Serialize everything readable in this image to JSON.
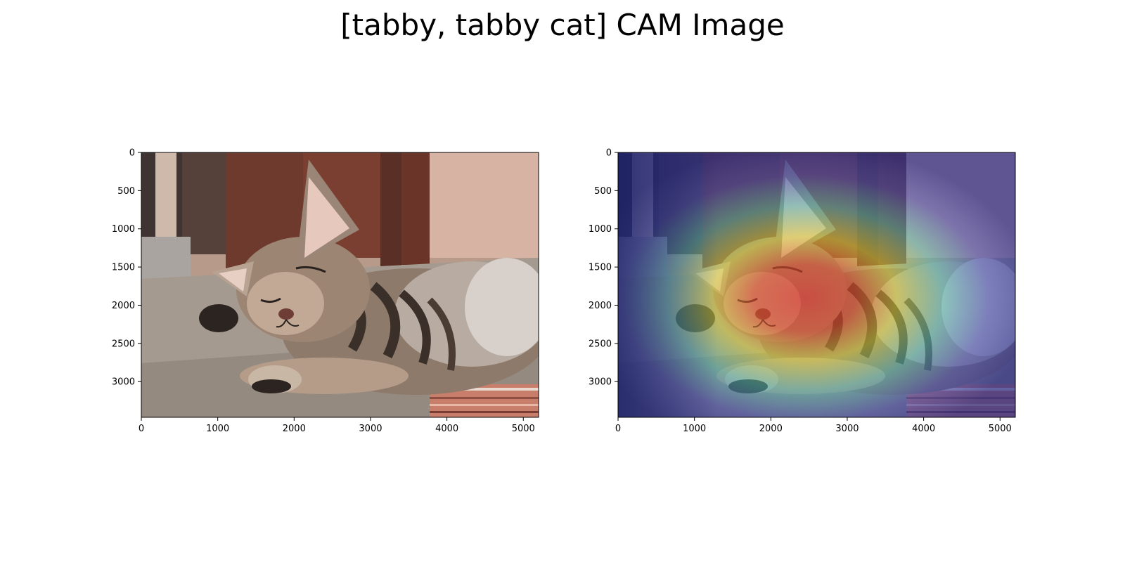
{
  "figure": {
    "title": "[tabby, tabby cat] CAM Image"
  },
  "panels": [
    {
      "kind": "original-photo",
      "x_ticks": [
        "0",
        "1000",
        "2000",
        "3000",
        "4000",
        "5000"
      ],
      "y_ticks": [
        "0",
        "500",
        "1000",
        "1500",
        "2000",
        "2500",
        "3000"
      ]
    },
    {
      "kind": "cam-heatmap-overlay",
      "colormap": "jet",
      "x_ticks": [
        "0",
        "1000",
        "2000",
        "3000",
        "4000",
        "5000"
      ],
      "y_ticks": [
        "0",
        "500",
        "1000",
        "1500",
        "2000",
        "2500",
        "3000"
      ]
    }
  ],
  "colors": {
    "wall_brown": "#6e3a2e",
    "wall_pink": "#d8b3a6",
    "floor": "#a79b90",
    "fur_light": "#c8b6a3",
    "fur_dark": "#3a2f29",
    "cam_hot": "#e0302a",
    "cam_mid": "#d8d23a",
    "cam_cool": "#4fb6b0",
    "cam_cold": "#2a2d8a"
  }
}
